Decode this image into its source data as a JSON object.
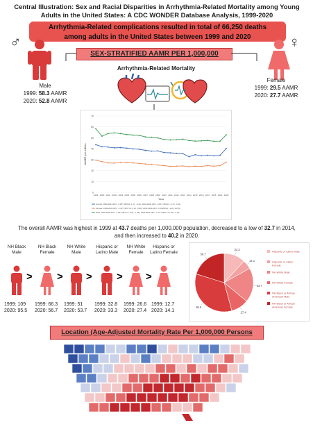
{
  "title": "Central Illustration: Sex and Racial Disparities in Arrhythmia-Related Mortality among Young Adults in the United States: A CDC WONDER Database Analysis, 1999-2020",
  "banner": {
    "line1": "Arrhythmia-Related complications resulted in total of 66,250 deaths",
    "line2": "among adults in the United States between 1999 and 2020"
  },
  "sex_section": {
    "header": "SEX-STRATIFIED AAMR PER 1,000,000",
    "center_label": "Arrhythmia-Related Mortality",
    "male": {
      "symbol": "♂",
      "label": "Male",
      "y1999_prefix": "1999: ",
      "y1999": "58.3",
      "y2020_prefix": "2020: ",
      "y2020": "52.8",
      "unit": " AAMR"
    },
    "female": {
      "symbol": "♀",
      "label": "Female",
      "y1999_prefix": "1999: ",
      "y1999": "29.5",
      "y2020_prefix": "2020: ",
      "y2020": "27.7",
      "unit": " AAMR"
    }
  },
  "colors": {
    "accent": "#e8524f",
    "male": "#d93a3a",
    "female": "#f06a6a",
    "overall": "#3e6db5",
    "bar": "#f07b7a"
  },
  "chart_data": {
    "type": "line",
    "xlabel": "Year",
    "ylabel": "AAMR per million",
    "ylim": [
      0,
      70
    ],
    "yticks": [
      "0",
      "10",
      "20",
      "30",
      "40",
      "50",
      "60",
      "70"
    ],
    "x": [
      "1999",
      "2000",
      "2001",
      "2002",
      "2003",
      "2004",
      "2005",
      "2006",
      "2007",
      "2008",
      "2009",
      "2010",
      "2011",
      "2012",
      "2013",
      "2014",
      "2015",
      "2016",
      "2017",
      "2018",
      "2019",
      "2020"
    ],
    "series": [
      {
        "name": "Male",
        "color": "#3b9a52",
        "values": [
          58.3,
          51.5,
          54.0,
          54.5,
          53.8,
          53.0,
          52.5,
          52.2,
          50.8,
          50.5,
          49.8,
          48.5,
          48.0,
          48.2,
          48.8,
          47.5,
          47.0,
          47.2,
          47.6,
          46.8,
          47.0,
          52.8
        ]
      },
      {
        "name": "Overall",
        "color": "#3e6db5",
        "values": [
          43.7,
          41.8,
          41.5,
          40.8,
          41.0,
          40.5,
          39.8,
          39.5,
          38.5,
          37.8,
          38.0,
          36.5,
          36.2,
          35.8,
          35.5,
          32.7,
          34.5,
          33.5,
          34.0,
          33.5,
          34.0,
          40.2
        ]
      },
      {
        "name": "Female",
        "color": "#e98a52",
        "values": [
          29.5,
          28.2,
          27.0,
          26.8,
          27.5,
          27.2,
          27.0,
          26.5,
          26.0,
          25.5,
          25.0,
          24.5,
          23.8,
          24.0,
          24.2,
          23.5,
          24.0,
          23.8,
          24.5,
          24.0,
          24.5,
          27.7
        ]
      }
    ],
    "legend": [
      "Overall: 1999-2004 APC: -0.96* (95%CI:-1.17, -0.14); 2004-2020 APC: -0.81* (95%CI: -0.72, -0.11)",
      "Female: 1999-2004 APC: -1.02* (95% CI:-3.13, -0.86); 2004-2009 APC: 0.01(95%CI: -3.26, 24.55)",
      "Male: 1999-2004 APC: -1.84* (95% CI:-5.01, -1.29); 2004-2020 APC: -1.17* (95% CI:-1.28, -0.79)"
    ]
  },
  "summary": {
    "p1": "The overall AAMR was highest in 1999 at ",
    "v1": "43.7",
    "p2": " deaths per 1,000,000 population, decreased to a low of ",
    "v2": "32.7",
    "p3": " in 2014, and then increased to ",
    "v3": "40.2",
    "p4": " in 2020."
  },
  "groups": [
    {
      "label": "NH Black Male",
      "y1999": "1999: 109",
      "y2020": "2020: 95.5",
      "sex": "male"
    },
    {
      "label": "NH Black Female",
      "y1999": "1999: 66.3",
      "y2020": "2020: 56.7",
      "sex": "female"
    },
    {
      "label": "NH White Male",
      "y1999": "1999: 51",
      "y2020": "2020: 53.7",
      "sex": "male"
    },
    {
      "label": "Hispanic or Latino Male",
      "y1999": "1999: 32.8",
      "y2020": "2020: 33.3",
      "sex": "male"
    },
    {
      "label": "NH White Female",
      "y1999": "1999: 26.6",
      "y2020": "2020: 27.4",
      "sex": "female"
    },
    {
      "label": "Hispanic or Latino Female",
      "y1999": "1999: 12.7",
      "y2020": "2020: 14.1",
      "sex": "female"
    }
  ],
  "arrow_glyph": ">",
  "pie": {
    "slices": [
      {
        "label": "Hispanic or Latino Male",
        "value": 33.3,
        "color": "#f6b8b8"
      },
      {
        "label": "Hispanic or Latino Female",
        "value": 14.1,
        "color": "#f3a1a1"
      },
      {
        "label": "NH White Male",
        "value": 53.7,
        "color": "#ef8585"
      },
      {
        "label": "NH White Female",
        "value": 27.4,
        "color": "#e96565"
      },
      {
        "label": "NH Black or African American Male",
        "value": 95.5,
        "color": "#d83c3c"
      },
      {
        "label": "NH Black or African American Female",
        "value": 56.7,
        "color": "#c22525"
      }
    ],
    "value_labels": [
      "33.3",
      "14.1",
      "53.7",
      "27.4",
      "95.5",
      "56.7"
    ]
  },
  "location": {
    "header": "Location (Age-Adjusted Mortality Rate Per 1,000,000 Persons"
  }
}
